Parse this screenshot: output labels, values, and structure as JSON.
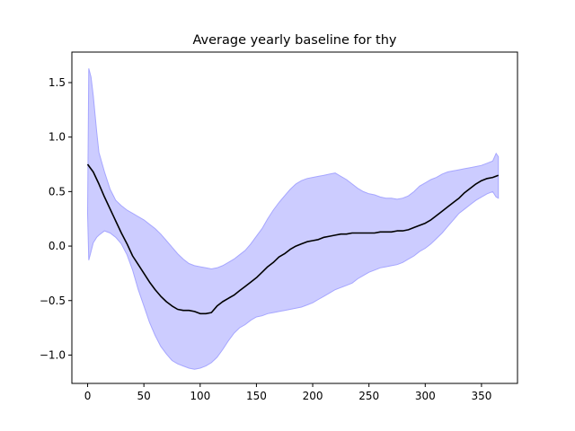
{
  "chart_data": {
    "type": "area",
    "title": "Average yearly baseline for thy",
    "xlabel": "",
    "ylabel": "",
    "xlim": [
      -14,
      382
    ],
    "ylim": [
      -1.26,
      1.78
    ],
    "x_ticks": [
      0,
      50,
      100,
      150,
      200,
      250,
      300,
      350
    ],
    "y_ticks": [
      -1.0,
      -0.5,
      0.0,
      0.5,
      1.0,
      1.5
    ],
    "grid": false,
    "colors": {
      "line": "#000000",
      "band_fill": "#ccccff",
      "band_edge": "#a6a6ff"
    },
    "series": [
      {
        "role": "mean",
        "x": [
          0,
          5,
          10,
          15,
          20,
          25,
          30,
          35,
          40,
          45,
          50,
          55,
          60,
          65,
          70,
          75,
          80,
          85,
          90,
          95,
          100,
          105,
          110,
          115,
          120,
          125,
          130,
          135,
          140,
          145,
          150,
          155,
          160,
          165,
          170,
          175,
          180,
          185,
          190,
          195,
          200,
          205,
          210,
          215,
          220,
          225,
          230,
          235,
          240,
          245,
          250,
          255,
          260,
          265,
          270,
          275,
          280,
          285,
          290,
          295,
          300,
          305,
          310,
          315,
          320,
          325,
          330,
          335,
          340,
          345,
          350,
          355,
          360,
          365
        ],
        "values": [
          0.75,
          0.68,
          0.57,
          0.45,
          0.34,
          0.23,
          0.12,
          0.02,
          -0.09,
          -0.17,
          -0.25,
          -0.33,
          -0.4,
          -0.46,
          -0.51,
          -0.55,
          -0.58,
          -0.59,
          -0.59,
          -0.6,
          -0.62,
          -0.62,
          -0.61,
          -0.55,
          -0.51,
          -0.48,
          -0.45,
          -0.41,
          -0.37,
          -0.33,
          -0.29,
          -0.24,
          -0.19,
          -0.15,
          -0.1,
          -0.07,
          -0.03,
          0.0,
          0.02,
          0.04,
          0.05,
          0.06,
          0.08,
          0.09,
          0.1,
          0.11,
          0.11,
          0.12,
          0.12,
          0.12,
          0.12,
          0.12,
          0.13,
          0.13,
          0.13,
          0.14,
          0.14,
          0.15,
          0.17,
          0.19,
          0.21,
          0.24,
          0.28,
          0.32,
          0.36,
          0.4,
          0.44,
          0.49,
          0.53,
          0.57,
          0.6,
          0.62,
          0.63,
          0.65
        ]
      },
      {
        "role": "upper",
        "x": [
          0,
          1,
          3,
          5,
          8,
          10,
          15,
          20,
          25,
          30,
          35,
          40,
          45,
          50,
          55,
          60,
          65,
          70,
          75,
          80,
          85,
          90,
          95,
          100,
          105,
          110,
          115,
          120,
          125,
          130,
          135,
          140,
          145,
          150,
          155,
          160,
          165,
          170,
          175,
          180,
          185,
          190,
          195,
          200,
          205,
          210,
          215,
          220,
          225,
          230,
          235,
          240,
          245,
          250,
          255,
          260,
          265,
          270,
          275,
          280,
          285,
          290,
          295,
          300,
          305,
          310,
          315,
          320,
          325,
          330,
          335,
          340,
          345,
          350,
          355,
          360,
          363,
          365
        ],
        "values": [
          0.3,
          1.63,
          1.55,
          1.38,
          1.05,
          0.86,
          0.68,
          0.52,
          0.42,
          0.37,
          0.33,
          0.3,
          0.27,
          0.24,
          0.2,
          0.16,
          0.11,
          0.05,
          -0.01,
          -0.07,
          -0.12,
          -0.16,
          -0.18,
          -0.19,
          -0.2,
          -0.21,
          -0.2,
          -0.18,
          -0.15,
          -0.12,
          -0.08,
          -0.04,
          0.02,
          0.09,
          0.16,
          0.25,
          0.33,
          0.4,
          0.46,
          0.52,
          0.57,
          0.6,
          0.62,
          0.63,
          0.64,
          0.65,
          0.66,
          0.67,
          0.64,
          0.61,
          0.57,
          0.53,
          0.5,
          0.48,
          0.47,
          0.45,
          0.44,
          0.44,
          0.43,
          0.44,
          0.46,
          0.5,
          0.55,
          0.58,
          0.61,
          0.63,
          0.66,
          0.68,
          0.69,
          0.7,
          0.71,
          0.72,
          0.73,
          0.74,
          0.76,
          0.78,
          0.85,
          0.82
        ]
      },
      {
        "role": "lower",
        "x": [
          0,
          1,
          3,
          5,
          8,
          10,
          15,
          20,
          25,
          30,
          35,
          40,
          45,
          50,
          55,
          60,
          65,
          70,
          75,
          80,
          85,
          90,
          95,
          100,
          105,
          110,
          115,
          120,
          125,
          130,
          135,
          140,
          145,
          150,
          155,
          160,
          165,
          170,
          175,
          180,
          185,
          190,
          195,
          200,
          205,
          210,
          215,
          220,
          225,
          230,
          235,
          240,
          245,
          250,
          255,
          260,
          265,
          270,
          275,
          280,
          285,
          290,
          295,
          300,
          305,
          310,
          315,
          320,
          325,
          330,
          335,
          340,
          345,
          350,
          355,
          360,
          363,
          365
        ],
        "values": [
          0.3,
          -0.13,
          -0.05,
          0.03,
          0.08,
          0.1,
          0.14,
          0.12,
          0.08,
          0.02,
          -0.08,
          -0.22,
          -0.4,
          -0.55,
          -0.7,
          -0.82,
          -0.92,
          -0.99,
          -1.05,
          -1.08,
          -1.1,
          -1.12,
          -1.13,
          -1.12,
          -1.1,
          -1.07,
          -1.02,
          -0.95,
          -0.87,
          -0.8,
          -0.75,
          -0.72,
          -0.68,
          -0.65,
          -0.64,
          -0.62,
          -0.61,
          -0.6,
          -0.59,
          -0.58,
          -0.57,
          -0.56,
          -0.54,
          -0.52,
          -0.49,
          -0.46,
          -0.43,
          -0.4,
          -0.38,
          -0.36,
          -0.34,
          -0.3,
          -0.27,
          -0.24,
          -0.22,
          -0.2,
          -0.19,
          -0.18,
          -0.17,
          -0.15,
          -0.12,
          -0.09,
          -0.05,
          -0.02,
          0.02,
          0.07,
          0.12,
          0.18,
          0.24,
          0.3,
          0.34,
          0.38,
          0.42,
          0.45,
          0.48,
          0.5,
          0.45,
          0.44
        ]
      }
    ]
  }
}
